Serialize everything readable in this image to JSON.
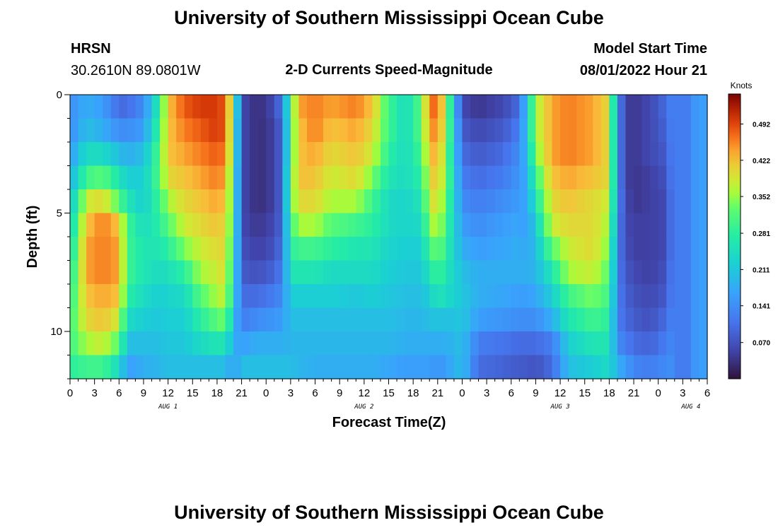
{
  "page": {
    "title": "University of Southern Mississippi Ocean Cube",
    "footer_title": "University of Southern Mississippi Ocean Cube",
    "station": "HRSN",
    "coordinates": "30.2610N  89.0801W",
    "model_start_label": "Model Start Time",
    "model_start_value": "08/01/2022 Hour 21"
  },
  "chart_data": {
    "type": "heatmap",
    "title": "2-D Currents Speed-Magnitude",
    "xlabel": "Forecast Time(Z)",
    "ylabel": "Depth (ft)",
    "x_ticks": [
      "0",
      "3",
      "6",
      "9",
      "12",
      "15",
      "18",
      "21",
      "0",
      "3",
      "6",
      "9",
      "12",
      "15",
      "18",
      "21",
      "0",
      "3",
      "6",
      "9",
      "12",
      "15",
      "18",
      "21",
      "0",
      "3",
      "6"
    ],
    "x_range_hours": [
      0,
      78
    ],
    "date_labels": [
      {
        "label": "AUG 1",
        "hour": 12
      },
      {
        "label": "AUG 2",
        "hour": 36
      },
      {
        "label": "AUG 3",
        "hour": 60
      },
      {
        "label": "AUG 4",
        "hour": 76
      }
    ],
    "y_ticks": [
      "0",
      "5",
      "10"
    ],
    "y_tick_values": [
      0,
      5,
      10
    ],
    "y_range_ft": [
      0,
      12
    ],
    "colorbar": {
      "title": "Knots",
      "ticks": [
        "0.070",
        "0.141",
        "0.211",
        "0.281",
        "0.352",
        "0.422",
        "0.492"
      ],
      "tick_values": [
        0.07,
        0.141,
        0.211,
        0.281,
        0.352,
        0.422,
        0.492
      ],
      "range": [
        0.0,
        0.55
      ]
    },
    "columns": 78,
    "depth_levels_ft": [
      0.5,
      1.5,
      2.5,
      3.5,
      4.5,
      5.5,
      6.5,
      7.5,
      8.5,
      9.5,
      10.5,
      11.5
    ],
    "profile_hours": [
      0,
      2,
      4,
      6,
      7,
      9,
      11,
      12,
      14,
      16,
      18,
      19,
      20,
      21,
      23,
      25,
      26,
      27,
      28,
      30,
      32,
      35,
      37,
      39,
      41,
      43,
      44,
      45,
      46,
      48,
      50,
      53,
      55,
      56,
      57,
      59,
      61,
      64,
      66,
      67,
      68,
      69,
      71,
      73,
      74,
      75,
      76,
      77
    ],
    "profiles": [
      [
        0.14,
        0.14,
        0.16,
        0.18,
        0.2,
        0.22,
        0.24,
        0.26,
        0.28,
        0.3,
        0.3,
        0.28
      ],
      [
        0.18,
        0.2,
        0.24,
        0.3,
        0.38,
        0.42,
        0.44,
        0.44,
        0.42,
        0.4,
        0.36,
        0.3
      ],
      [
        0.16,
        0.18,
        0.24,
        0.32,
        0.4,
        0.46,
        0.46,
        0.46,
        0.44,
        0.42,
        0.38,
        0.3
      ],
      [
        0.1,
        0.14,
        0.2,
        0.26,
        0.32,
        0.42,
        0.44,
        0.44,
        0.42,
        0.38,
        0.32,
        0.24
      ],
      [
        0.1,
        0.14,
        0.18,
        0.22,
        0.26,
        0.3,
        0.3,
        0.3,
        0.28,
        0.24,
        0.2,
        0.16
      ],
      [
        0.14,
        0.16,
        0.2,
        0.22,
        0.22,
        0.24,
        0.26,
        0.26,
        0.24,
        0.22,
        0.2,
        0.18
      ],
      [
        0.28,
        0.3,
        0.32,
        0.32,
        0.3,
        0.28,
        0.26,
        0.24,
        0.22,
        0.21,
        0.2,
        0.19
      ],
      [
        0.42,
        0.42,
        0.42,
        0.4,
        0.36,
        0.32,
        0.28,
        0.25,
        0.23,
        0.22,
        0.21,
        0.2
      ],
      [
        0.48,
        0.46,
        0.44,
        0.42,
        0.4,
        0.38,
        0.34,
        0.28,
        0.24,
        0.22,
        0.21,
        0.2
      ],
      [
        0.5,
        0.48,
        0.46,
        0.44,
        0.42,
        0.4,
        0.38,
        0.36,
        0.32,
        0.28,
        0.24,
        0.2
      ],
      [
        0.5,
        0.5,
        0.48,
        0.46,
        0.44,
        0.42,
        0.4,
        0.38,
        0.36,
        0.32,
        0.26,
        0.2
      ],
      [
        0.48,
        0.48,
        0.46,
        0.44,
        0.42,
        0.4,
        0.4,
        0.4,
        0.38,
        0.34,
        0.26,
        0.2
      ],
      [
        0.34,
        0.32,
        0.32,
        0.3,
        0.3,
        0.3,
        0.28,
        0.26,
        0.24,
        0.2,
        0.18,
        0.16
      ],
      [
        0.06,
        0.06,
        0.06,
        0.06,
        0.06,
        0.06,
        0.07,
        0.08,
        0.1,
        0.12,
        0.16,
        0.2
      ],
      [
        0.03,
        0.03,
        0.03,
        0.03,
        0.03,
        0.04,
        0.05,
        0.07,
        0.1,
        0.14,
        0.18,
        0.2
      ],
      [
        0.06,
        0.05,
        0.05,
        0.05,
        0.05,
        0.06,
        0.07,
        0.09,
        0.12,
        0.15,
        0.18,
        0.2
      ],
      [
        0.12,
        0.1,
        0.1,
        0.1,
        0.1,
        0.1,
        0.11,
        0.12,
        0.14,
        0.16,
        0.18,
        0.2
      ],
      [
        0.3,
        0.3,
        0.3,
        0.32,
        0.32,
        0.3,
        0.28,
        0.26,
        0.22,
        0.2,
        0.19,
        0.2
      ],
      [
        0.44,
        0.42,
        0.42,
        0.42,
        0.4,
        0.36,
        0.3,
        0.26,
        0.22,
        0.2,
        0.19,
        0.19
      ],
      [
        0.46,
        0.46,
        0.44,
        0.42,
        0.4,
        0.36,
        0.3,
        0.26,
        0.22,
        0.2,
        0.19,
        0.18
      ],
      [
        0.44,
        0.42,
        0.4,
        0.38,
        0.36,
        0.32,
        0.28,
        0.24,
        0.22,
        0.2,
        0.19,
        0.18
      ],
      [
        0.46,
        0.44,
        0.42,
        0.4,
        0.36,
        0.3,
        0.26,
        0.24,
        0.21,
        0.2,
        0.19,
        0.18
      ],
      [
        0.42,
        0.4,
        0.38,
        0.34,
        0.3,
        0.28,
        0.26,
        0.24,
        0.22,
        0.2,
        0.19,
        0.18
      ],
      [
        0.3,
        0.3,
        0.28,
        0.26,
        0.24,
        0.24,
        0.23,
        0.22,
        0.21,
        0.2,
        0.19,
        0.17
      ],
      [
        0.24,
        0.24,
        0.24,
        0.24,
        0.23,
        0.23,
        0.22,
        0.21,
        0.2,
        0.19,
        0.18,
        0.16
      ],
      [
        0.32,
        0.32,
        0.3,
        0.28,
        0.26,
        0.24,
        0.22,
        0.21,
        0.2,
        0.19,
        0.18,
        0.16
      ],
      [
        0.46,
        0.44,
        0.42,
        0.4,
        0.38,
        0.34,
        0.3,
        0.26,
        0.22,
        0.2,
        0.18,
        0.16
      ],
      [
        0.48,
        0.46,
        0.44,
        0.42,
        0.4,
        0.38,
        0.34,
        0.3,
        0.26,
        0.21,
        0.18,
        0.15
      ],
      [
        0.36,
        0.36,
        0.34,
        0.34,
        0.32,
        0.3,
        0.28,
        0.26,
        0.24,
        0.2,
        0.18,
        0.16
      ],
      [
        0.06,
        0.08,
        0.1,
        0.12,
        0.14,
        0.16,
        0.18,
        0.2,
        0.21,
        0.21,
        0.2,
        0.2
      ],
      [
        0.04,
        0.06,
        0.08,
        0.1,
        0.12,
        0.14,
        0.16,
        0.18,
        0.18,
        0.16,
        0.12,
        0.1
      ],
      [
        0.06,
        0.08,
        0.1,
        0.12,
        0.14,
        0.16,
        0.17,
        0.18,
        0.17,
        0.15,
        0.11,
        0.09
      ],
      [
        0.1,
        0.12,
        0.14,
        0.15,
        0.16,
        0.17,
        0.18,
        0.18,
        0.16,
        0.14,
        0.1,
        0.08
      ],
      [
        0.22,
        0.22,
        0.2,
        0.18,
        0.17,
        0.16,
        0.17,
        0.18,
        0.16,
        0.14,
        0.1,
        0.08
      ],
      [
        0.36,
        0.36,
        0.34,
        0.3,
        0.26,
        0.22,
        0.2,
        0.19,
        0.17,
        0.14,
        0.1,
        0.07
      ],
      [
        0.44,
        0.44,
        0.44,
        0.42,
        0.4,
        0.38,
        0.32,
        0.26,
        0.22,
        0.18,
        0.12,
        0.1
      ],
      [
        0.46,
        0.46,
        0.46,
        0.44,
        0.42,
        0.4,
        0.38,
        0.36,
        0.3,
        0.26,
        0.22,
        0.2
      ],
      [
        0.44,
        0.44,
        0.44,
        0.42,
        0.4,
        0.4,
        0.4,
        0.38,
        0.34,
        0.3,
        0.26,
        0.22
      ],
      [
        0.4,
        0.4,
        0.4,
        0.4,
        0.38,
        0.36,
        0.34,
        0.32,
        0.3,
        0.28,
        0.26,
        0.24
      ],
      [
        0.14,
        0.14,
        0.14,
        0.14,
        0.14,
        0.13,
        0.12,
        0.12,
        0.12,
        0.12,
        0.14,
        0.18
      ],
      [
        0.05,
        0.05,
        0.05,
        0.05,
        0.06,
        0.06,
        0.07,
        0.08,
        0.09,
        0.1,
        0.12,
        0.16
      ],
      [
        0.04,
        0.04,
        0.04,
        0.04,
        0.04,
        0.05,
        0.05,
        0.06,
        0.07,
        0.08,
        0.1,
        0.13
      ],
      [
        0.06,
        0.06,
        0.06,
        0.05,
        0.05,
        0.05,
        0.05,
        0.05,
        0.06,
        0.07,
        0.09,
        0.12
      ],
      [
        0.1,
        0.09,
        0.08,
        0.07,
        0.06,
        0.06,
        0.06,
        0.07,
        0.08,
        0.1,
        0.12,
        0.14
      ],
      [
        0.14,
        0.14,
        0.14,
        0.14,
        0.14,
        0.14,
        0.14,
        0.14,
        0.14,
        0.14,
        0.14,
        0.14
      ],
      [
        0.1,
        0.1,
        0.1,
        0.1,
        0.1,
        0.1,
        0.1,
        0.1,
        0.1,
        0.1,
        0.1,
        0.1
      ],
      [
        0.14,
        0.14,
        0.14,
        0.14,
        0.14,
        0.14,
        0.14,
        0.14,
        0.14,
        0.14,
        0.14,
        0.14
      ],
      [
        0.16,
        0.16,
        0.16,
        0.16,
        0.16,
        0.16,
        0.16,
        0.16,
        0.16,
        0.16,
        0.16,
        0.16
      ]
    ]
  }
}
